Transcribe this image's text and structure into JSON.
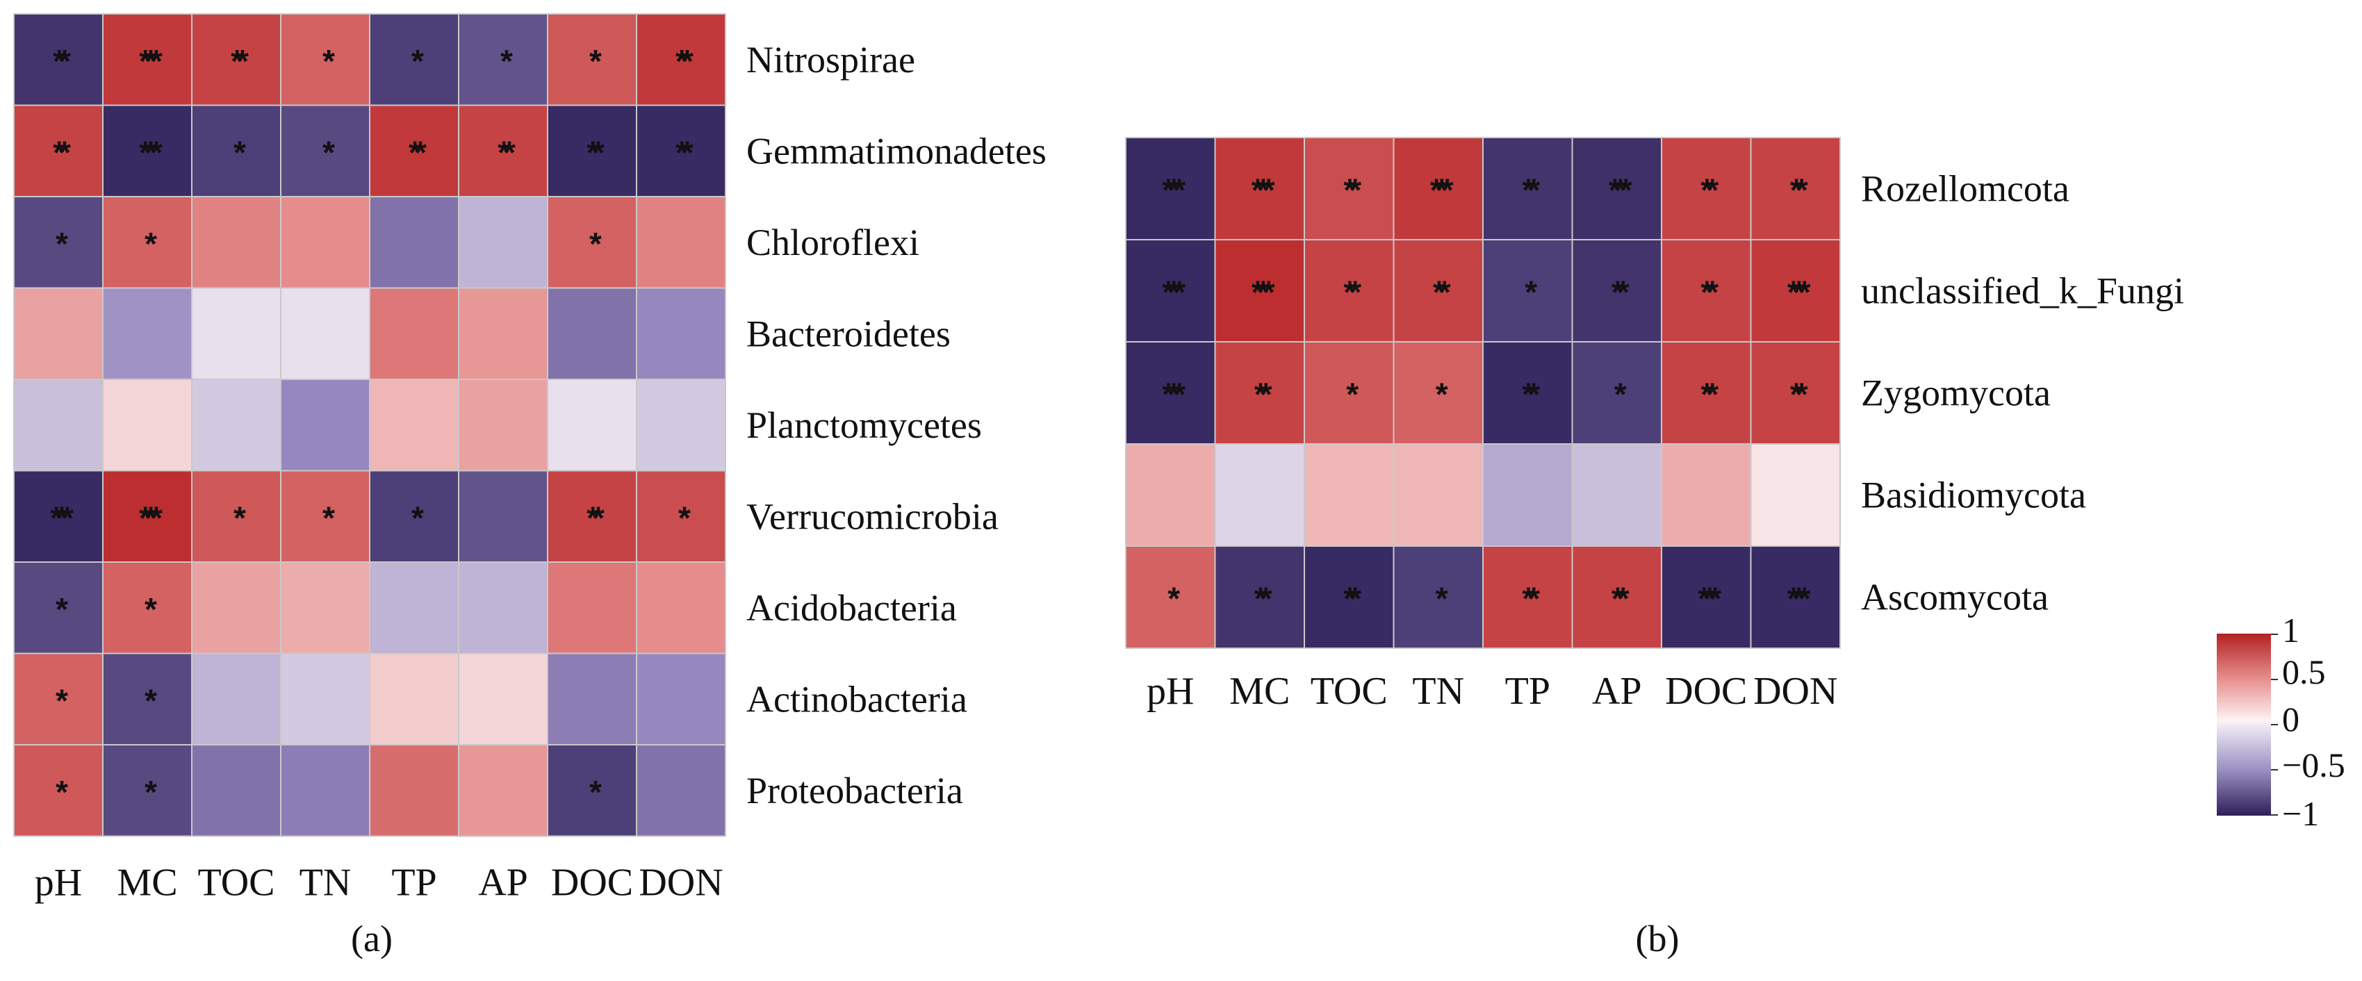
{
  "chart_data": [
    {
      "type": "heatmap",
      "panel_label": "(a)",
      "x_labels": [
        "pH",
        "MC",
        "TOC",
        "TN",
        "TP",
        "AP",
        "DOC",
        "DON"
      ],
      "y_labels": [
        "Nitrospirae",
        "Gemmatimonadetes",
        "Chloroflexi",
        "Bacteroidetes",
        "Planctomycetes",
        "Verrucomicrobia",
        "Acidobacteria",
        "Actinobacteria",
        "Proteobacteria"
      ],
      "values": [
        [
          -0.9,
          0.9,
          0.85,
          0.7,
          -0.85,
          -0.75,
          0.75,
          0.9
        ],
        [
          0.85,
          -0.95,
          -0.85,
          -0.8,
          0.9,
          0.85,
          -0.95,
          -0.95
        ],
        [
          -0.8,
          0.7,
          0.55,
          0.5,
          -0.6,
          -0.3,
          0.7,
          0.55
        ],
        [
          0.4,
          -0.45,
          -0.1,
          -0.1,
          0.6,
          0.45,
          -0.6,
          -0.5
        ],
        [
          -0.25,
          0.15,
          -0.2,
          -0.5,
          0.3,
          0.4,
          -0.1,
          -0.2
        ],
        [
          -0.95,
          0.95,
          0.75,
          0.7,
          -0.85,
          -0.75,
          0.85,
          0.8
        ],
        [
          -0.8,
          0.7,
          0.4,
          0.35,
          -0.3,
          -0.3,
          0.6,
          0.5
        ],
        [
          0.7,
          -0.8,
          -0.3,
          -0.2,
          0.2,
          0.15,
          -0.55,
          -0.5
        ],
        [
          0.75,
          -0.8,
          -0.6,
          -0.55,
          0.65,
          0.45,
          -0.85,
          -0.6
        ]
      ],
      "significance": [
        [
          "**",
          "***",
          "**",
          "*",
          "*",
          "*",
          "*",
          "**"
        ],
        [
          "**",
          "***",
          "*",
          "*",
          "**",
          "**",
          "**",
          "**"
        ],
        [
          "*",
          "*",
          "",
          "",
          "",
          "",
          "*",
          ""
        ],
        [
          "",
          "",
          "",
          "",
          "",
          "",
          "",
          ""
        ],
        [
          "",
          "",
          "",
          "",
          "",
          "",
          "",
          ""
        ],
        [
          "***",
          "***",
          "*",
          "*",
          "*",
          "",
          "**",
          "*"
        ],
        [
          "*",
          "*",
          "",
          "",
          "",
          "",
          "",
          ""
        ],
        [
          "*",
          "*",
          "",
          "",
          "",
          "",
          "",
          ""
        ],
        [
          "*",
          "*",
          "",
          "",
          "",
          "",
          "*",
          ""
        ]
      ],
      "colorbar": {
        "min": -1,
        "max": 1,
        "ticks": [
          "1",
          "0.5",
          "0",
          "−0.5",
          "−1"
        ]
      }
    },
    {
      "type": "heatmap",
      "panel_label": "(b)",
      "x_labels": [
        "pH",
        "MC",
        "TOC",
        "TN",
        "TP",
        "AP",
        "DOC",
        "DON"
      ],
      "y_labels": [
        "Rozellomcota",
        "unclassified_k_Fungi",
        "Zygomycota",
        "Basidiomycota",
        "Ascomycota"
      ],
      "values": [
        [
          -0.95,
          0.9,
          0.8,
          0.9,
          -0.9,
          -0.92,
          0.85,
          0.85
        ],
        [
          -0.95,
          0.95,
          0.85,
          0.85,
          -0.85,
          -0.9,
          0.85,
          0.9
        ],
        [
          -0.95,
          0.85,
          0.75,
          0.7,
          -0.95,
          -0.85,
          0.85,
          0.85
        ],
        [
          0.35,
          -0.15,
          0.3,
          0.3,
          -0.35,
          -0.25,
          0.35,
          0.08
        ],
        [
          0.7,
          -0.9,
          -0.95,
          -0.85,
          0.85,
          0.85,
          -0.95,
          -0.95
        ]
      ],
      "significance": [
        [
          "***",
          "***",
          "**",
          "***",
          "**",
          "***",
          "**",
          "**"
        ],
        [
          "***",
          "***",
          "**",
          "**",
          "*",
          "**",
          "**",
          "***"
        ],
        [
          "***",
          "**",
          "*",
          "*",
          "**",
          "*",
          "**",
          "**"
        ],
        [
          "",
          "",
          "",
          "",
          "",
          "",
          "",
          ""
        ],
        [
          "*",
          "**",
          "**",
          "*",
          "**",
          "**",
          "***",
          "***"
        ]
      ]
    }
  ]
}
